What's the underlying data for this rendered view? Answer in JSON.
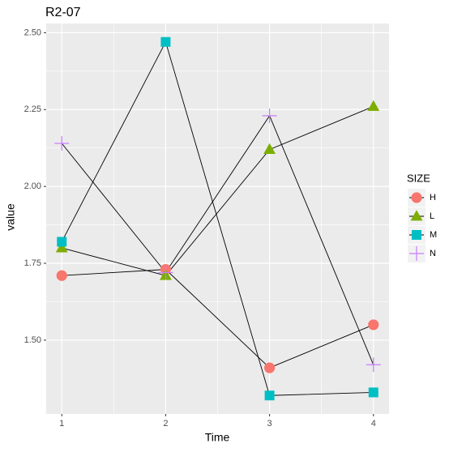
{
  "chart_data": {
    "type": "line",
    "title": "R2-07",
    "x_label": "Time",
    "y_label": "value",
    "x": [
      1,
      2,
      3,
      4
    ],
    "series": [
      {
        "name": "H",
        "color": "#F8766D",
        "marker": "circle",
        "values": [
          1.71,
          1.73,
          1.41,
          1.55
        ]
      },
      {
        "name": "L",
        "color": "#7CAE00",
        "marker": "triangle",
        "values": [
          1.8,
          1.71,
          2.12,
          2.26
        ]
      },
      {
        "name": "M",
        "color": "#00BFC4",
        "marker": "square",
        "values": [
          1.82,
          2.47,
          1.32,
          1.33
        ]
      },
      {
        "name": "N",
        "color": "#C77CFF",
        "marker": "plus",
        "values": [
          2.14,
          1.72,
          2.23,
          1.42
        ]
      }
    ],
    "legend_title": "SIZE",
    "legend": "right",
    "xlim": [
      0.85,
      4.15
    ],
    "xticks": [
      1,
      2,
      3,
      4
    ],
    "ylim": [
      1.26,
      2.53
    ],
    "yticks": [
      {
        "value": 1.5,
        "label": "1.50"
      },
      {
        "value": 1.75,
        "label": "1.75"
      },
      {
        "value": 2,
        "label": "2.00"
      },
      {
        "value": 2.25,
        "label": "2.25"
      },
      {
        "value": 2.5,
        "label": "2.50"
      }
    ],
    "grid": true
  }
}
